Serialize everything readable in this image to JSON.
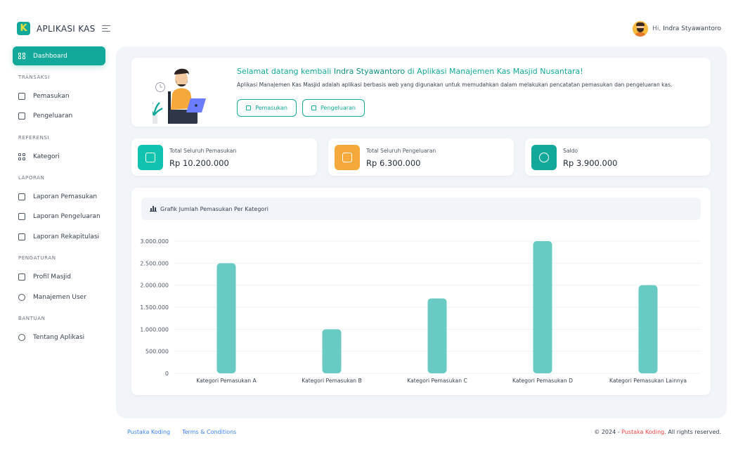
{
  "app": {
    "name": "APLIKASI KAS",
    "logo_letter": "K"
  },
  "user": {
    "greeting": "Hi,",
    "name": "Indra Styawantoro"
  },
  "sidebar": {
    "active": {
      "label": "Dashboard",
      "icon": "dashboard-icon"
    },
    "sections": [
      {
        "title": "TRANSAKSI",
        "items": [
          {
            "label": "Pemasukan",
            "icon": "income-icon"
          },
          {
            "label": "Pengeluaran",
            "icon": "expense-icon"
          }
        ]
      },
      {
        "title": "REFERENSI",
        "items": [
          {
            "label": "Kategori",
            "icon": "category-icon"
          }
        ]
      },
      {
        "title": "LAPORAN",
        "items": [
          {
            "label": "Laporan Pemasukan",
            "icon": "report-income-icon"
          },
          {
            "label": "Laporan Pengeluaran",
            "icon": "report-expense-icon"
          },
          {
            "label": "Laporan Rekapitulasi",
            "icon": "report-recap-icon"
          }
        ]
      },
      {
        "title": "PENGATURAN",
        "items": [
          {
            "label": "Profil Masjid",
            "icon": "mosque-icon"
          },
          {
            "label": "Manajemen User",
            "icon": "user-icon"
          }
        ]
      },
      {
        "title": "BANTUAN",
        "items": [
          {
            "label": "Tentang Aplikasi",
            "icon": "info-icon"
          }
        ]
      }
    ]
  },
  "welcome": {
    "title_prefix": "Selamat datang kembali",
    "title_name": "Indra Styawantoro",
    "title_middle": "di",
    "title_app": "Aplikasi Manajemen Kas Masjid Nusantara!",
    "description": "Aplikasi Manajemen Kas Masjid adalah aplikasi berbasis web yang digunakan untuk memudahkan dalam melakukan pencatatan pemasukan dan pengeluaran kas.",
    "button_income": "Pemasukan",
    "button_expense": "Pengeluaran"
  },
  "stats": [
    {
      "label": "Total Seluruh Pemasukan",
      "value": "Rp 10.200.000",
      "color": "#12c2b0",
      "icon": "income-box-icon"
    },
    {
      "label": "Total Seluruh Pengeluaran",
      "value": "Rp 6.300.000",
      "color": "#f6a93b",
      "icon": "expense-box-icon"
    },
    {
      "label": "Saldo",
      "value": "Rp 3.900.000",
      "color": "#12a89a",
      "icon": "balance-icon"
    }
  ],
  "chart_title": "Grafik Jumlah Pemasukan Per Kategori",
  "chart_data": {
    "type": "bar",
    "title": "Grafik Jumlah Pemasukan Per Kategori",
    "categories": [
      "Kategori Pemasukan A",
      "Kategori Pemasukan B",
      "Kategori Pemasukan C",
      "Kategori Pemasukan D",
      "Kategori Pemasukan Lainnya"
    ],
    "values": [
      2500000,
      1000000,
      1700000,
      3000000,
      2000000
    ],
    "ylim": [
      0,
      3000000
    ],
    "yticks": [
      0,
      500000,
      1000000,
      1500000,
      2000000,
      2500000,
      3000000
    ],
    "ytick_labels": [
      "0",
      "500.000",
      "1.000.000",
      "1.500.000",
      "2.000.000",
      "2.500.000",
      "3.000.000"
    ],
    "bar_color": "#68cbc3",
    "grid": true
  },
  "footer": {
    "links": [
      "Pustaka Koding",
      "Terms & Conditions"
    ],
    "copyright_prefix": "© 2024 -",
    "copyright_brand": "Pustaka Koding.",
    "copyright_suffix": "All rights reserved."
  }
}
